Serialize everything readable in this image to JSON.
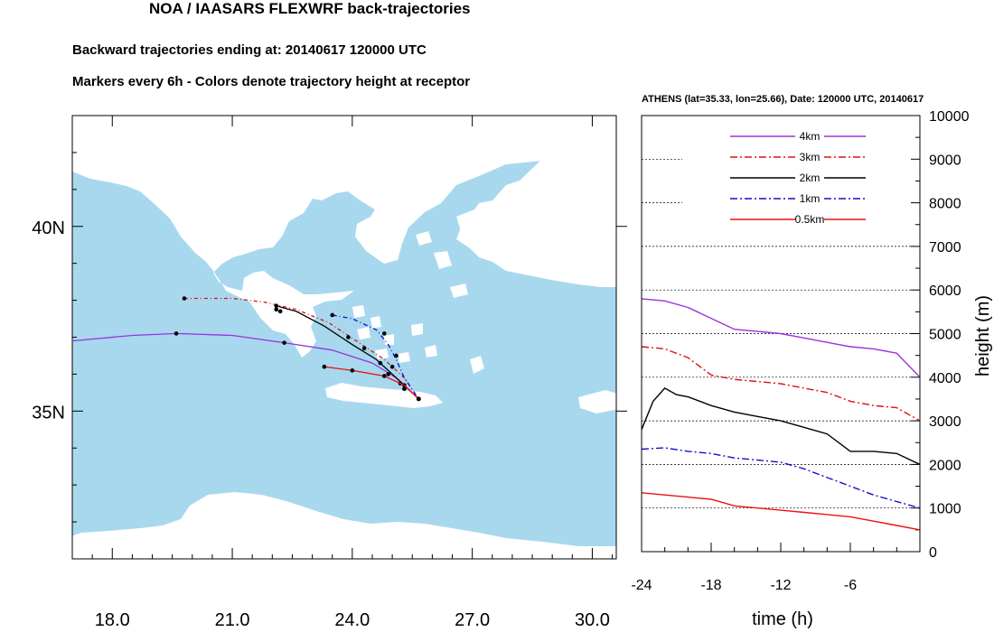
{
  "header": {
    "title": "NOA / IAASARS FLEXWRF back-trajectories",
    "subtitle1": "Backward trajectories ending at: 20140617  120000 UTC",
    "subtitle2": "Markers every 6h - Colors denote trajectory height at receptor"
  },
  "colors": {
    "sea": "#a8d8ee",
    "land": "#ffffff",
    "c4km": "#9933dd",
    "c3km": "#dd1111",
    "c2km": "#000000",
    "c1km": "#1111cc",
    "c05km": "#ee1111"
  },
  "chart_data": [
    {
      "type": "line",
      "name": "map",
      "xlim": [
        17.0,
        30.6
      ],
      "ylim": [
        31.0,
        43.0
      ],
      "xticks": [
        18.0,
        21.0,
        24.0,
        27.0,
        30.0
      ],
      "xtick_labels": [
        "18.0",
        "21.0",
        "24.0",
        "27.0",
        "30.0"
      ],
      "yticks": [
        35,
        40
      ],
      "ytick_labels": [
        "35N",
        "40N"
      ],
      "receptor": [
        25.66,
        35.33
      ],
      "series": [
        {
          "key": "4km",
          "color": "#9933dd",
          "dash": "",
          "points": [
            [
              17.0,
              36.9
            ],
            [
              18.5,
              37.05
            ],
            [
              19.6,
              37.1
            ],
            [
              21.0,
              37.05
            ],
            [
              22.3,
              36.85
            ],
            [
              23.5,
              36.65
            ],
            [
              24.5,
              36.3
            ],
            [
              25.1,
              35.9
            ],
            [
              25.66,
              35.33
            ]
          ],
          "markers": [
            [
              19.6,
              37.1
            ],
            [
              22.3,
              36.85
            ],
            [
              24.9,
              36.0
            ]
          ]
        },
        {
          "key": "3km",
          "color": "#dd1111",
          "dash": "4 3 1 3",
          "points": [
            [
              19.8,
              38.05
            ],
            [
              21.0,
              38.05
            ],
            [
              21.8,
              37.95
            ],
            [
              22.6,
              37.75
            ],
            [
              23.4,
              37.4
            ],
            [
              24.1,
              36.9
            ],
            [
              24.8,
              36.4
            ],
            [
              25.3,
              35.9
            ],
            [
              25.66,
              35.33
            ]
          ],
          "markers": [
            [
              19.8,
              38.05
            ],
            [
              22.1,
              37.75
            ],
            [
              23.9,
              37.0
            ],
            [
              25.0,
              36.2
            ]
          ]
        },
        {
          "key": "2km",
          "color": "#000000",
          "dash": "",
          "points": [
            [
              22.1,
              37.85
            ],
            [
              22.6,
              37.7
            ],
            [
              23.3,
              37.3
            ],
            [
              24.0,
              36.8
            ],
            [
              24.6,
              36.4
            ],
            [
              25.1,
              35.9
            ],
            [
              25.66,
              35.33
            ]
          ],
          "markers": [
            [
              22.1,
              37.85
            ],
            [
              22.2,
              37.7
            ],
            [
              24.3,
              36.7
            ],
            [
              24.7,
              36.3
            ],
            [
              25.2,
              35.75
            ]
          ]
        },
        {
          "key": "1km",
          "color": "#1111cc",
          "dash": "5 3 1 3",
          "points": [
            [
              23.5,
              37.6
            ],
            [
              24.0,
              37.5
            ],
            [
              24.6,
              37.2
            ],
            [
              24.9,
              36.8
            ],
            [
              25.1,
              36.4
            ],
            [
              25.3,
              35.9
            ],
            [
              25.66,
              35.33
            ]
          ],
          "markers": [
            [
              23.5,
              37.6
            ],
            [
              24.8,
              37.1
            ],
            [
              25.1,
              36.5
            ],
            [
              25.3,
              35.7
            ]
          ]
        },
        {
          "key": "0.5km",
          "color": "#ee1111",
          "dash": "",
          "points": [
            [
              23.3,
              36.2
            ],
            [
              24.0,
              36.1
            ],
            [
              24.8,
              35.95
            ],
            [
              25.3,
              35.7
            ],
            [
              25.66,
              35.33
            ]
          ],
          "markers": [
            [
              23.3,
              36.2
            ],
            [
              24.0,
              36.1
            ],
            [
              24.8,
              35.95
            ],
            [
              25.3,
              35.6
            ]
          ]
        }
      ]
    },
    {
      "type": "line",
      "name": "height",
      "title": "ATHENS (lat=35.33,  lon=25.66), Date: 120000 UTC, 20140617",
      "xlabel": "time (h)",
      "ylabel": "height (m)",
      "xlim": [
        -24,
        0
      ],
      "ylim": [
        0,
        10000
      ],
      "xticks": [
        -24,
        -18,
        -12,
        -6
      ],
      "xtick_labels": [
        "-24",
        "-18",
        "-12",
        "-6"
      ],
      "yticks": [
        0,
        1000,
        2000,
        3000,
        4000,
        5000,
        6000,
        7000,
        8000,
        9000,
        10000
      ],
      "ytick_labels": [
        "0",
        "1000",
        "2000",
        "3000",
        "4000",
        "5000",
        "6000",
        "7000",
        "8000",
        "9000",
        "10000"
      ],
      "grid": true,
      "legend_position": "top-center",
      "series": [
        {
          "name": "4km",
          "color": "#9933dd",
          "dash": "",
          "x": [
            -24,
            -22,
            -20,
            -18,
            -16,
            -14,
            -12,
            -10,
            -8,
            -6,
            -4,
            -2,
            0
          ],
          "y": [
            5800,
            5750,
            5600,
            5350,
            5100,
            5050,
            5000,
            4900,
            4800,
            4700,
            4650,
            4550,
            4000
          ]
        },
        {
          "name": "3km",
          "color": "#dd1111",
          "dash": "8 3 2 3",
          "x": [
            -24,
            -22,
            -20,
            -18,
            -16,
            -14,
            -12,
            -10,
            -8,
            -6,
            -4,
            -2,
            0
          ],
          "y": [
            4700,
            4650,
            4450,
            4050,
            3950,
            3900,
            3850,
            3750,
            3650,
            3450,
            3350,
            3300,
            3000
          ]
        },
        {
          "name": "2km",
          "color": "#000000",
          "dash": "",
          "x": [
            -24,
            -23,
            -22,
            -21,
            -20,
            -18,
            -16,
            -14,
            -12,
            -10,
            -8,
            -6,
            -4,
            -2,
            0
          ],
          "y": [
            2800,
            3450,
            3750,
            3600,
            3550,
            3350,
            3200,
            3100,
            3000,
            2850,
            2700,
            2300,
            2300,
            2250,
            2000
          ]
        },
        {
          "name": "1km",
          "color": "#1111cc",
          "dash": "8 3 2 3",
          "x": [
            -24,
            -22,
            -20,
            -18,
            -16,
            -14,
            -12,
            -10,
            -8,
            -6,
            -4,
            -2,
            0
          ],
          "y": [
            2350,
            2380,
            2300,
            2250,
            2150,
            2100,
            2050,
            1900,
            1700,
            1500,
            1300,
            1150,
            1000
          ]
        },
        {
          "name": "0.5km",
          "color": "#ee1111",
          "dash": "",
          "x": [
            -24,
            -22,
            -20,
            -18,
            -16,
            -14,
            -12,
            -10,
            -8,
            -6,
            -4,
            -2,
            0
          ],
          "y": [
            1350,
            1300,
            1250,
            1200,
            1050,
            1000,
            950,
            900,
            850,
            800,
            700,
            600,
            500
          ]
        }
      ]
    }
  ]
}
